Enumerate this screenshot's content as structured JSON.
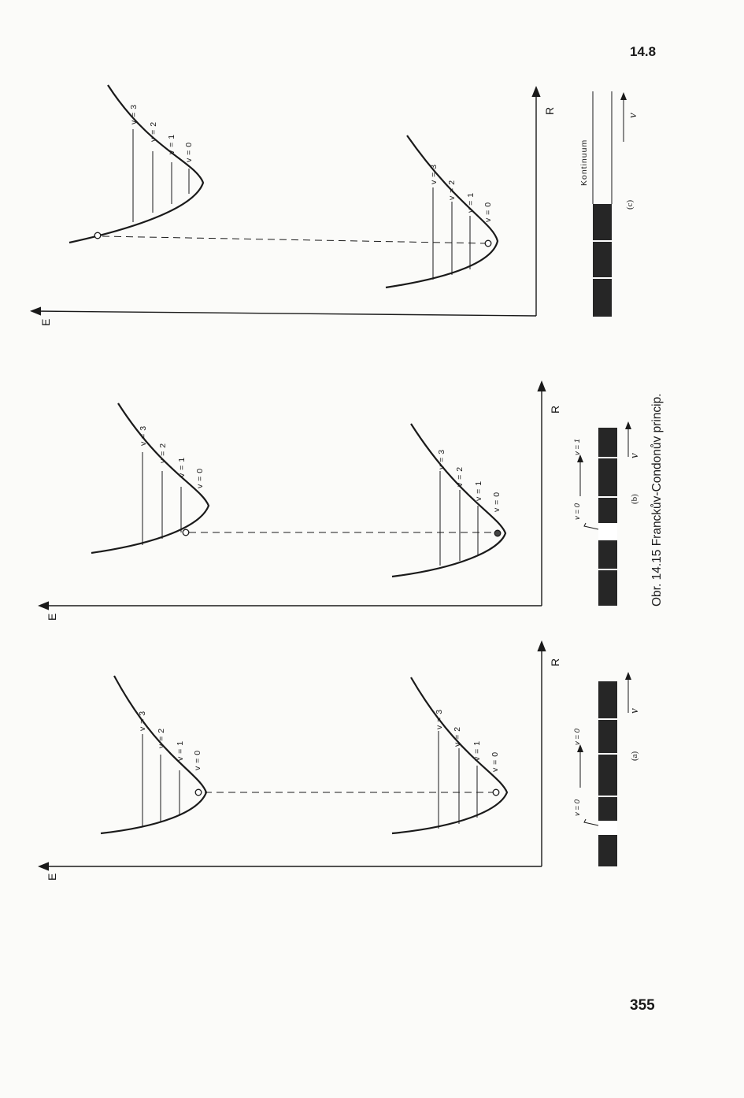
{
  "header": {
    "section": "14.8"
  },
  "footer": {
    "page_number": "355"
  },
  "figure": {
    "caption": "Obr. 14.15 Franckův-Condonův princip.",
    "axis_e": "E",
    "axis_r": "R",
    "nu": "ν",
    "levels": [
      "v = 3",
      "v = 2",
      "v = 1",
      "v = 0"
    ],
    "panels": [
      {
        "id": "a",
        "label": "(a)",
        "transition_from": "v = 0",
        "transition_to": "v = 0"
      },
      {
        "id": "b",
        "label": "(b)",
        "transition_from": "v = 0",
        "transition_to": "v = 1"
      },
      {
        "id": "c",
        "label": "(c)",
        "continuum": "Kontinuum"
      }
    ]
  }
}
